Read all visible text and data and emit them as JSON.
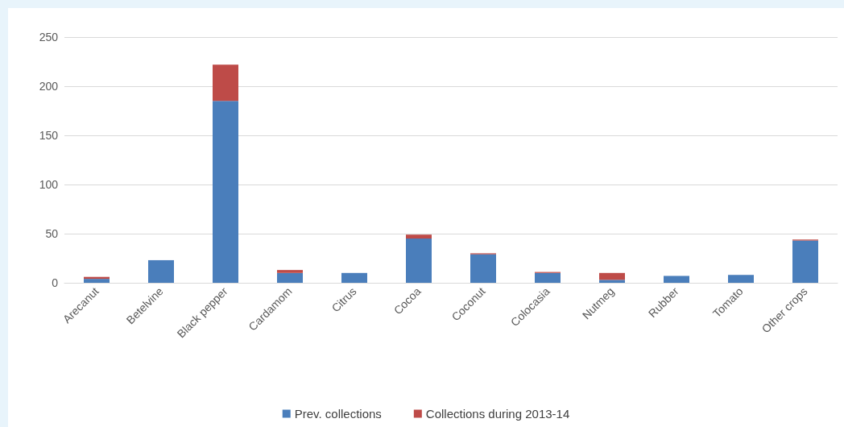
{
  "chart_data": {
    "type": "bar",
    "stacked": true,
    "categories": [
      "Arecanut",
      "Betelvine",
      "Black pepper",
      "Cardamom",
      "Citrus",
      "Cocoa",
      "Coconut",
      "Colocasia",
      "Nutmeg",
      "Rubber",
      "Tomato",
      "Other crops"
    ],
    "series": [
      {
        "name": "Prev. collections",
        "color": "#4a7ebb",
        "values": [
          4,
          23,
          185,
          10,
          10,
          45,
          29,
          10,
          3,
          7,
          8,
          43
        ]
      },
      {
        "name": "Collections during 2013-14",
        "color": "#be4b48",
        "values": [
          2,
          0,
          37,
          3,
          0,
          4,
          1,
          1,
          7,
          0,
          0,
          1
        ]
      }
    ],
    "ylim": [
      0,
      250
    ],
    "yticks": [
      0,
      50,
      100,
      150,
      200,
      250
    ],
    "grid": "y",
    "legend": "bottom"
  }
}
